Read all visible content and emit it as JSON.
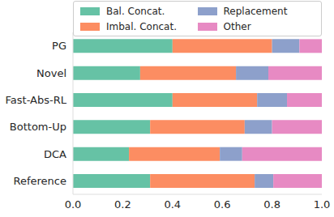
{
  "chart_data": {
    "type": "bar",
    "orientation": "horizontal",
    "stacked": true,
    "categories": [
      "PG",
      "Novel",
      "Fast-Abs-RL",
      "Bottom-Up",
      "DCA",
      "Reference"
    ],
    "series": [
      {
        "name": "Bal. Concat.",
        "color": "#66c2a5",
        "values": [
          0.4,
          0.27,
          0.4,
          0.31,
          0.225,
          0.31
        ]
      },
      {
        "name": "Imbal. Concat.",
        "color": "#fc8d62",
        "values": [
          0.4,
          0.385,
          0.34,
          0.38,
          0.365,
          0.42
        ]
      },
      {
        "name": "Replacement",
        "color": "#8da0cb",
        "values": [
          0.11,
          0.13,
          0.12,
          0.11,
          0.09,
          0.075
        ]
      },
      {
        "name": "Other",
        "color": "#e78ac3",
        "values": [
          0.09,
          0.215,
          0.14,
          0.2,
          0.32,
          0.195
        ]
      }
    ],
    "xlim": [
      0,
      1
    ],
    "xticks": [
      {
        "value": 0,
        "label": "0.0"
      },
      0.2,
      0.4,
      0.6,
      0.8,
      {
        "value": 1,
        "label": "1.0"
      }
    ],
    "legend": "top",
    "grid": false
  }
}
